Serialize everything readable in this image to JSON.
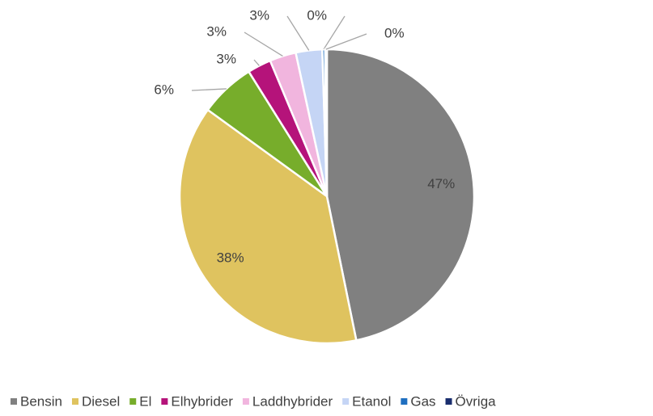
{
  "chart_data": {
    "type": "pie",
    "categories": [
      "Bensin",
      "Diesel",
      "El",
      "Elhybrider",
      "Laddhybrider",
      "Etanol",
      "Gas",
      "Övriga"
    ],
    "values": [
      46.8,
      38.2,
      6.1,
      2.6,
      2.9,
      2.9,
      0.3,
      0.2
    ],
    "value_labels": [
      "47%",
      "38%",
      "6%",
      "3%",
      "3%",
      "3%",
      "0%",
      "0%"
    ],
    "colors": [
      "#808080",
      "#dfc35f",
      "#77ad2b",
      "#b5137a",
      "#f1b5de",
      "#c5d5f5",
      "#1f6fc0",
      "#1a2e6e"
    ],
    "legend": "bottom"
  }
}
